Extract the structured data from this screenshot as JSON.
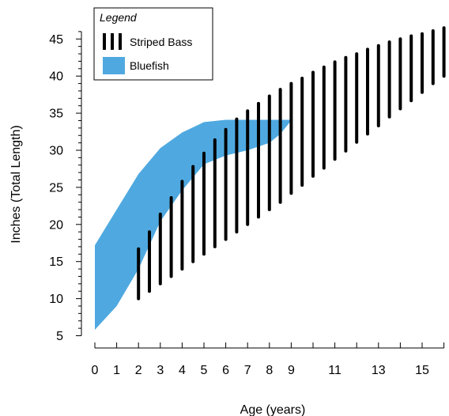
{
  "chart_data": {
    "type": "range",
    "xlabel": "Age (years)",
    "ylabel": "Inches (Total Length)",
    "xlim": [
      0,
      16
    ],
    "ylim": [
      5,
      46
    ],
    "x_tick_labels": [
      {
        "x": 0,
        "label": "0"
      },
      {
        "x": 1,
        "label": "1"
      },
      {
        "x": 2,
        "label": "2"
      },
      {
        "x": 3,
        "label": "3"
      },
      {
        "x": 4,
        "label": "4"
      },
      {
        "x": 5,
        "label": "5"
      },
      {
        "x": 6,
        "label": "6"
      },
      {
        "x": 7,
        "label": "7"
      },
      {
        "x": 8,
        "label": "8"
      },
      {
        "x": 9,
        "label": "9"
      },
      {
        "x": 11,
        "label": "11"
      },
      {
        "x": 13,
        "label": "13"
      },
      {
        "x": 15,
        "label": "15"
      }
    ],
    "y_tick_labels": [
      {
        "y": 5,
        "label": "5"
      },
      {
        "y": 10,
        "label": "10"
      },
      {
        "y": 15,
        "label": "15"
      },
      {
        "y": 20,
        "label": "20"
      },
      {
        "y": 25,
        "label": "25"
      },
      {
        "y": 30,
        "label": "30"
      },
      {
        "y": 35,
        "label": "35"
      },
      {
        "y": 40,
        "label": "40"
      },
      {
        "y": 45,
        "label": "45"
      }
    ],
    "legend": {
      "title": "Legend",
      "entries": [
        {
          "name": "Striped Bass",
          "marker": "bars"
        },
        {
          "name": "Bluefish",
          "marker": "box"
        }
      ]
    },
    "series": [
      {
        "name": "Striped Bass",
        "style": "range-bars",
        "color": "#000000",
        "ranges": [
          {
            "x": 2,
            "low": 10.0,
            "high": 16.7
          },
          {
            "x": 2.5,
            "low": 11.0,
            "high": 19.0
          },
          {
            "x": 3,
            "low": 12.0,
            "high": 21.4
          },
          {
            "x": 3.5,
            "low": 13.0,
            "high": 23.6
          },
          {
            "x": 4,
            "low": 14.0,
            "high": 25.8
          },
          {
            "x": 4.5,
            "low": 15.0,
            "high": 27.8
          },
          {
            "x": 5,
            "low": 16.0,
            "high": 29.6
          },
          {
            "x": 5.5,
            "low": 17.0,
            "high": 31.4
          },
          {
            "x": 6,
            "low": 18.0,
            "high": 32.8
          },
          {
            "x": 6.5,
            "low": 19.0,
            "high": 34.2
          },
          {
            "x": 7,
            "low": 20.0,
            "high": 35.3
          },
          {
            "x": 7.5,
            "low": 21.0,
            "high": 36.3
          },
          {
            "x": 8,
            "low": 22.0,
            "high": 37.3
          },
          {
            "x": 8.5,
            "low": 23.0,
            "high": 38.2
          },
          {
            "x": 9,
            "low": 24.2,
            "high": 39.0
          },
          {
            "x": 9.5,
            "low": 25.3,
            "high": 39.7
          },
          {
            "x": 10,
            "low": 26.5,
            "high": 40.5
          },
          {
            "x": 10.5,
            "low": 27.6,
            "high": 41.2
          },
          {
            "x": 11,
            "low": 28.8,
            "high": 41.9
          },
          {
            "x": 11.5,
            "low": 29.9,
            "high": 42.5
          },
          {
            "x": 12,
            "low": 31.1,
            "high": 43.0
          },
          {
            "x": 12.5,
            "low": 32.2,
            "high": 43.6
          },
          {
            "x": 13,
            "low": 33.3,
            "high": 44.1
          },
          {
            "x": 13.5,
            "low": 34.5,
            "high": 44.6
          },
          {
            "x": 14,
            "low": 35.6,
            "high": 45.0
          },
          {
            "x": 14.5,
            "low": 36.7,
            "high": 45.4
          },
          {
            "x": 15,
            "low": 37.8,
            "high": 45.7
          },
          {
            "x": 15.5,
            "low": 39.0,
            "high": 46.1
          },
          {
            "x": 16,
            "low": 40.0,
            "high": 46.5
          }
        ]
      },
      {
        "name": "Bluefish",
        "style": "band",
        "color": "#4FA9E0",
        "x": [
          0,
          1,
          2,
          3,
          4,
          5,
          6,
          7,
          8,
          8.5,
          9
        ],
        "low": [
          5.8,
          9.0,
          14.0,
          20.4,
          24.6,
          28.1,
          29.3,
          30.0,
          31.0,
          32.2,
          34.0
        ],
        "high": [
          17.2,
          22.0,
          26.8,
          30.3,
          32.4,
          33.8,
          34.1,
          34.1,
          34.1,
          34.1,
          34.1
        ]
      }
    ]
  }
}
